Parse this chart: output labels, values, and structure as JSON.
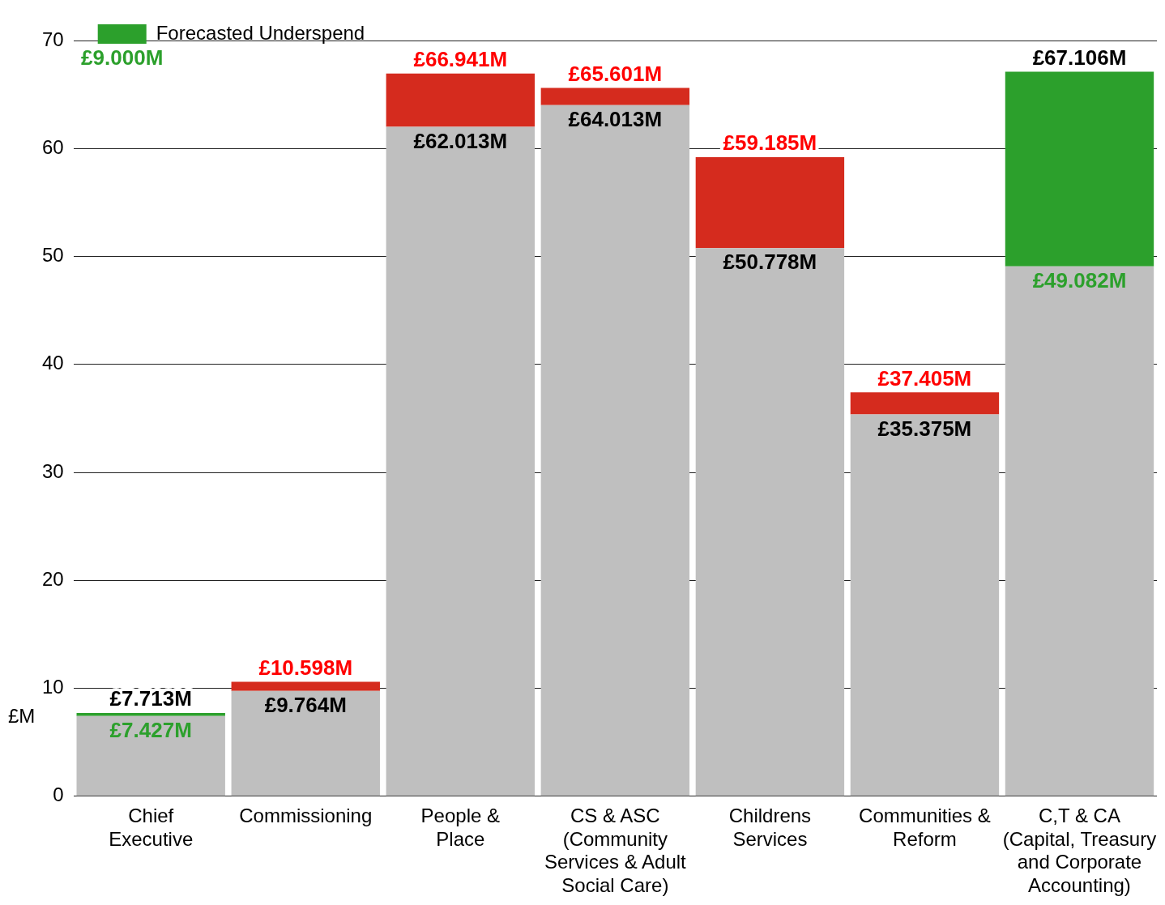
{
  "chart_data": {
    "type": "bar",
    "stacked": true,
    "ylabel": "£M",
    "categories": [
      "Chief Executive",
      "Commissioning",
      "People & Place",
      "CS & ASC (Community Services & Adult Social Care)",
      "Childrens Services",
      "Communities & Reform",
      "C,T & CA (Capital, Treasury and Corporate Accounting)"
    ],
    "series": [
      {
        "color": "#bfbfbf",
        "values": [
          7.427,
          9.764,
          62.013,
          64.013,
          50.778,
          35.375,
          49.082
        ],
        "value_labels": [
          "£7.427M",
          "£9.764M",
          "£62.013M",
          "£64.013M",
          "£50.778M",
          "£35.375M",
          "£49.082M"
        ]
      },
      {
        "color": "#d52b1e",
        "values": [
          null,
          0.834,
          4.928,
          1.588,
          8.407,
          2.03,
          null
        ]
      },
      {
        "name": "Forecasted Underspend",
        "color": "#2ca02c",
        "values": [
          0.286,
          null,
          null,
          null,
          null,
          null,
          18.024
        ]
      }
    ],
    "totals": [
      "£7.713M",
      "£10.598M",
      "£66.941M",
      "£65.601M",
      "£59.185M",
      "£37.405M",
      "£67.106M"
    ],
    "annotations": [
      "£9.000M"
    ],
    "ylim": [
      0,
      70
    ],
    "yticks": [
      0,
      10,
      20,
      30,
      40,
      50,
      60,
      70
    ],
    "grid": "y",
    "legend": "top left"
  }
}
